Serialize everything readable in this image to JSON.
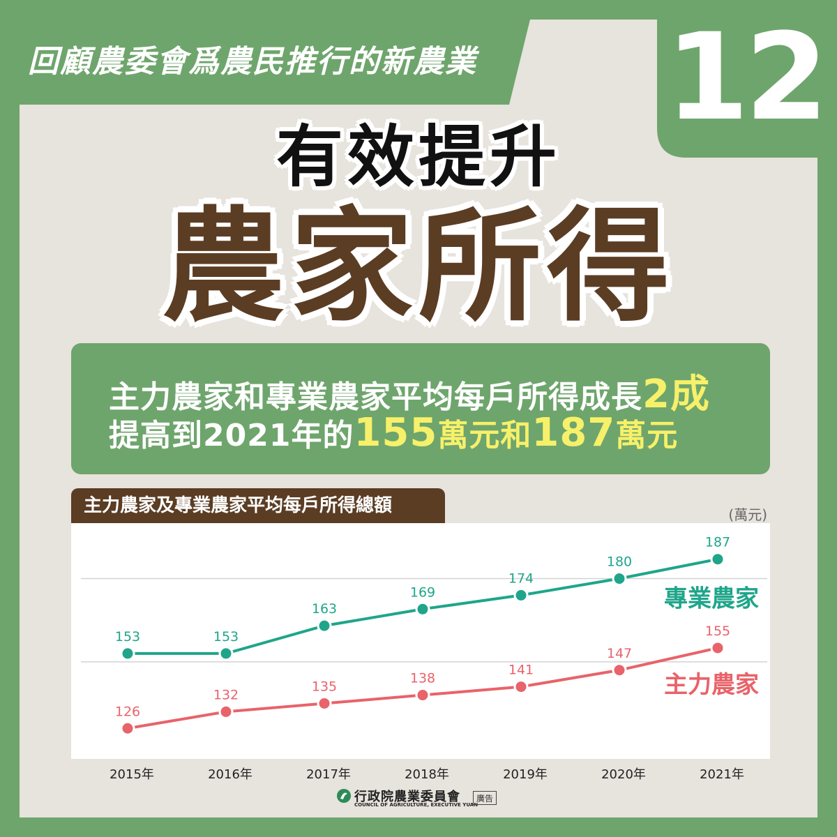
{
  "banner": {
    "text": "回顧農委會爲農民推行的新農業",
    "number": "12"
  },
  "headline": {
    "line1": "有效提升",
    "line2": "農家所得"
  },
  "summary": {
    "line1_text": "主力農家和專業農家平均每戶所得成長",
    "line1_highlight": "2成",
    "line2_prefix": "提高到2021年的",
    "line2_value1": "155",
    "line2_unit1": "萬元和",
    "line2_value2": "187",
    "line2_unit2": "萬元"
  },
  "chart_data": {
    "type": "line",
    "title": "主力農家及專業農家平均每戶所得總額",
    "unit": "(萬元)",
    "categories": [
      "2015年",
      "2016年",
      "2017年",
      "2018年",
      "2019年",
      "2020年",
      "2021年"
    ],
    "series": [
      {
        "name": "專業農家",
        "color": "#1fa58a",
        "values": [
          153,
          153,
          163,
          169,
          174,
          180,
          187
        ]
      },
      {
        "name": "主力農家",
        "color": "#e8636a",
        "values": [
          126,
          132,
          135,
          138,
          141,
          147,
          155
        ]
      }
    ],
    "ylim": [
      115,
      200
    ],
    "grid": true
  },
  "footer": {
    "org_name": "行政院農業委員會",
    "org_en": "COUNCIL OF AGRICULTURE, EXECUTIVE YUAN",
    "ad_label": "廣告"
  },
  "colors": {
    "green": "#6ea56c",
    "panel": "#e7e3dd",
    "brown": "#5b3d24",
    "highlight": "#f7f06a"
  }
}
